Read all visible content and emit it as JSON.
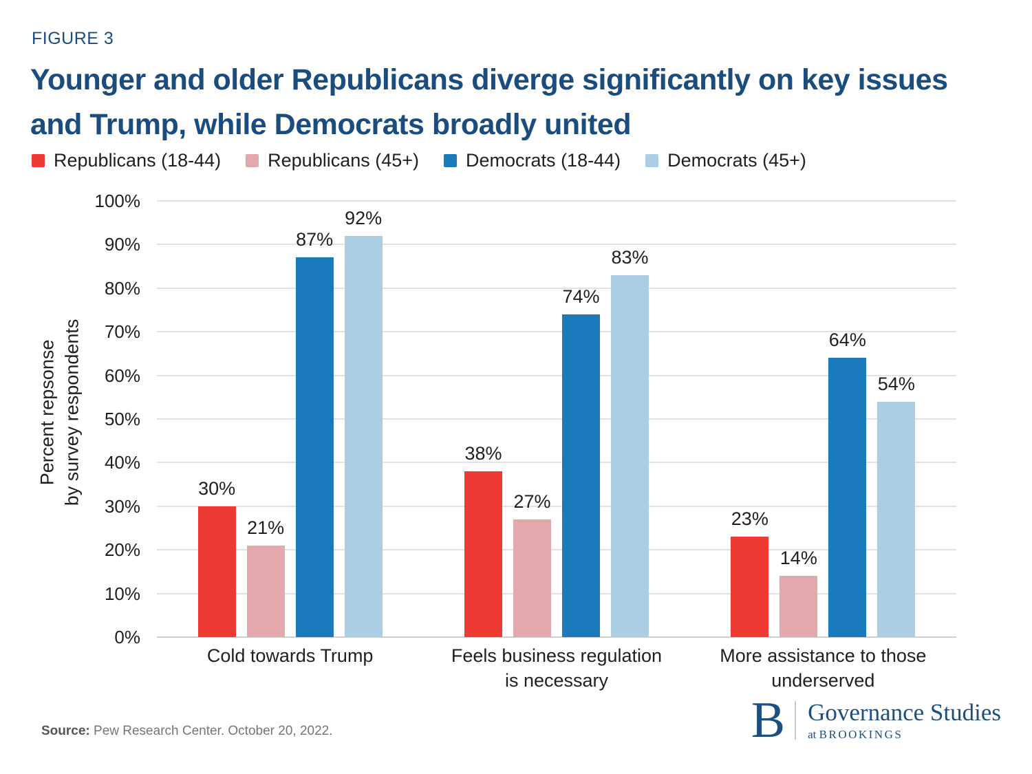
{
  "figure": {
    "label": "FIGURE 3",
    "title": "Younger and older Republicans diverge significantly on key issues and Trump, while Democrats broadly united"
  },
  "chart_data": {
    "type": "bar",
    "categories": [
      "Cold towards Trump",
      "Feels business regulation is necessary",
      "More assistance to those underserved"
    ],
    "series": [
      {
        "name": "Republicans (18-44)",
        "color": "#ee3a33",
        "values": [
          30,
          38,
          23
        ]
      },
      {
        "name": "Republicans (45+)",
        "color": "#e3a8ac",
        "values": [
          21,
          27,
          14
        ]
      },
      {
        "name": "Democrats (18-44)",
        "color": "#1b7abc",
        "values": [
          87,
          74,
          64
        ]
      },
      {
        "name": "Democrats (45+)",
        "color": "#aacfe4",
        "values": [
          92,
          83,
          54
        ]
      }
    ],
    "ylabel_lines": [
      "Percent repsonse",
      "by survey respondents"
    ],
    "yticks": [
      "0%",
      "10%",
      "20%",
      "30%",
      "40%",
      "50%",
      "60%",
      "70%",
      "80%",
      "90%",
      "100%"
    ],
    "ylim": [
      0,
      100
    ],
    "value_suffix": "%",
    "grid": "horizontal",
    "legend_position": "top"
  },
  "footer": {
    "source_label": "Source:",
    "source_text": " Pew Research Center. October 20, 2022."
  },
  "logo": {
    "monogram": "B",
    "org": "Governance Studies",
    "tagline_prefix": "at ",
    "tagline_org": "BROOKINGS"
  },
  "colors": {
    "brand_navy": "#1a4c7e",
    "logo_navy": "#1d4e80",
    "grid": "#e2e2e2",
    "axis_line": "#cfcfcf",
    "text": "#1f1f1f",
    "source_gray": "#757575"
  }
}
